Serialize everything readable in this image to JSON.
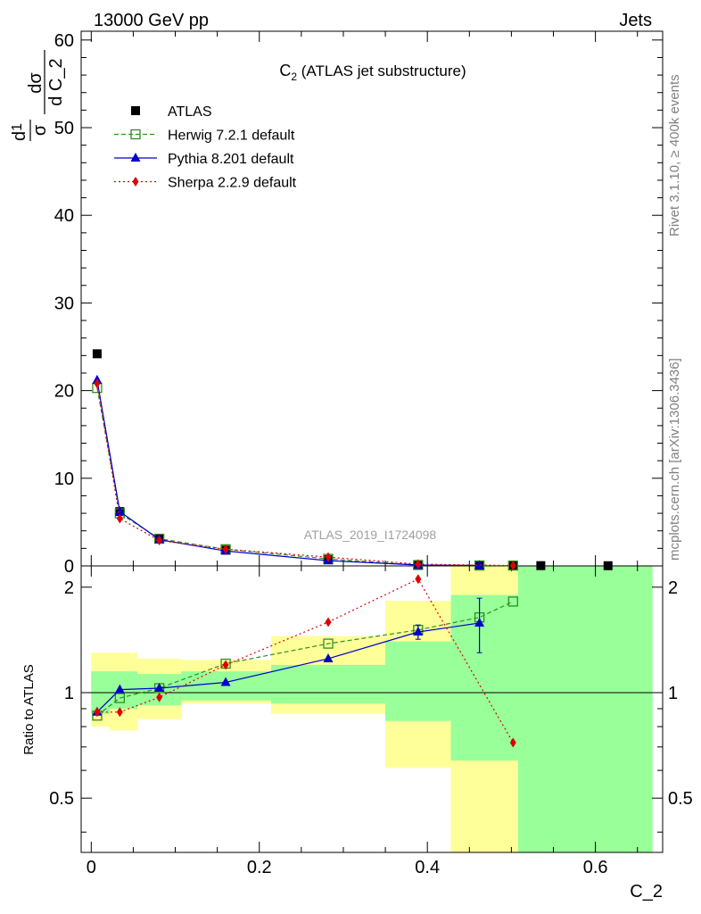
{
  "header": {
    "left": "13000 GeV pp",
    "right": "Jets"
  },
  "title_main": "C",
  "title_sub": "2",
  "title_rest": " (ATLAS jet substructure)",
  "ylabel_top": {
    "frac1_num": "d",
    "frac1_num_sup": "1",
    "frac1_den": "σ",
    "frac2_num": "dσ",
    "frac2_den": "d C_2"
  },
  "side_text_1": "Rivet 3.1.10, ≥ 400k events",
  "side_text_2": "mcplots.cern.ch [arXiv:1306.3436]",
  "analysis_label": "ATLAS_2019_I1724098",
  "xlabel": "C_2",
  "ylabel_ratio": "Ratio to ATLAS",
  "colors": {
    "atlas": "#000000",
    "herwig": "#2f8f1f",
    "pythia": "#0000cc",
    "sherpa": "#dd0000",
    "band_green": "#99ff99",
    "band_yellow": "#ffff99"
  },
  "chart_data": {
    "type": "scatter",
    "xlim": [
      -0.012,
      0.68
    ],
    "top_ylim": [
      0,
      61
    ],
    "ratio_ylim": [
      0.35,
      2.3
    ],
    "x_ticks": [
      "0",
      "0.2",
      "0.4",
      "0.6"
    ],
    "x_tick_values": [
      0,
      0.2,
      0.4,
      0.6
    ],
    "top_y_ticks": [
      "0",
      "10",
      "20",
      "30",
      "40",
      "50",
      "60"
    ],
    "top_y_tick_values": [
      0,
      10,
      20,
      30,
      40,
      50,
      60
    ],
    "ratio_y_ticks": [
      "0.5",
      "1",
      "2"
    ],
    "ratio_y_tick_values": [
      0.5,
      1,
      2
    ],
    "legend": [
      "ATLAS",
      "Herwig 7.2.1 default",
      "Pythia 8.201 default",
      "Sherpa 2.2.9 default"
    ],
    "bins": [
      {
        "lo": 0.0,
        "hi": 0.022,
        "green": [
          0.87,
          1.15
        ],
        "yellow": [
          0.8,
          1.3
        ]
      },
      {
        "lo": 0.022,
        "hi": 0.055,
        "green": [
          0.9,
          1.15
        ],
        "yellow": [
          0.78,
          1.3
        ]
      },
      {
        "lo": 0.055,
        "hi": 0.107,
        "green": [
          0.92,
          1.13
        ],
        "yellow": [
          0.84,
          1.25
        ]
      },
      {
        "lo": 0.107,
        "hi": 0.214,
        "green": [
          0.95,
          1.15
        ],
        "yellow": [
          0.93,
          1.24
        ]
      },
      {
        "lo": 0.214,
        "hi": 0.35,
        "green": [
          0.93,
          1.2
        ],
        "yellow": [
          0.87,
          1.45
        ]
      },
      {
        "lo": 0.35,
        "hi": 0.428,
        "green": [
          0.83,
          1.4
        ],
        "yellow": [
          0.61,
          1.83
        ]
      },
      {
        "lo": 0.428,
        "hi": 0.508,
        "green": [
          0.64,
          1.9
        ],
        "yellow": [
          0.35,
          2.3
        ]
      },
      {
        "lo": 0.508,
        "hi": 0.56,
        "green": [
          0.35,
          2.3
        ],
        "yellow": [
          0.57,
          2.3
        ]
      },
      {
        "lo": 0.56,
        "hi": 0.668,
        "green": [
          0.35,
          2.3
        ],
        "yellow": null
      }
    ],
    "series": [
      {
        "name": "ATLAS",
        "x": [
          0.007,
          0.034,
          0.081,
          0.16,
          0.282,
          0.389,
          0.462,
          0.502,
          0.535,
          0.615
        ],
        "y": [
          24.2,
          6.2,
          3.1,
          1.8,
          0.7,
          0.1,
          0.05,
          0.04,
          0.03,
          0.02
        ]
      },
      {
        "name": "Herwig 7.2.1 default",
        "x": [
          0.007,
          0.034,
          0.081,
          0.16,
          0.282,
          0.389,
          0.462,
          0.502
        ],
        "y": [
          20.3,
          6.0,
          3.1,
          1.9,
          0.8,
          0.1,
          0.05,
          0.04
        ],
        "ratio": [
          0.86,
          0.965,
          1.03,
          1.21,
          1.38,
          1.51,
          1.64,
          1.82
        ]
      },
      {
        "name": "Pythia 8.201 default",
        "x": [
          0.007,
          0.034,
          0.081,
          0.16,
          0.282,
          0.389,
          0.462
        ],
        "y": [
          21.2,
          6.2,
          3.0,
          1.7,
          0.6,
          0.1,
          0.05
        ],
        "ratio": [
          0.88,
          1.02,
          1.03,
          1.07,
          1.25,
          1.49,
          1.58
        ],
        "ratio_err": [
          0.01,
          0.01,
          0.01,
          0.01,
          0.02,
          0.07,
          0.28
        ]
      },
      {
        "name": "Sherpa 2.2.9 default",
        "x": [
          0.007,
          0.034,
          0.081,
          0.16,
          0.282,
          0.389,
          0.502
        ],
        "y": [
          20.8,
          5.4,
          2.9,
          1.9,
          1.0,
          0.2,
          0.04
        ],
        "ratio": [
          0.88,
          0.88,
          0.97,
          1.2,
          1.59,
          2.11,
          0.72
        ]
      }
    ]
  }
}
